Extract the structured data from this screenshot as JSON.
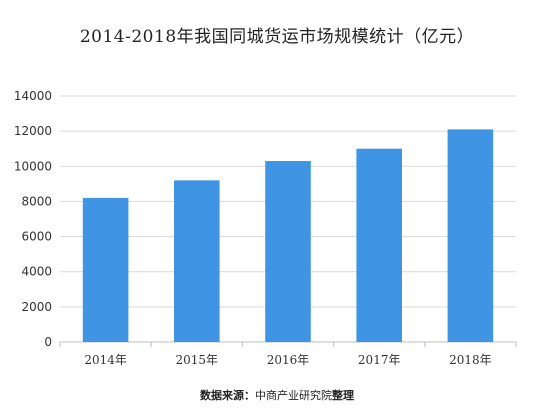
{
  "chart_data": {
    "type": "bar",
    "title": "2014-2018年我国同城货运市场规模统计（亿元）",
    "categories": [
      "2014年",
      "2015年",
      "2016年",
      "2017年",
      "2018年"
    ],
    "values": [
      8200,
      9200,
      10300,
      11000,
      12100
    ],
    "ylim": [
      0,
      14000
    ],
    "yticks": [
      0,
      2000,
      4000,
      6000,
      8000,
      10000,
      12000,
      14000
    ],
    "xlabel": "",
    "ylabel": "",
    "grid": true,
    "legend": "none",
    "bar_color": "#3f95e4",
    "grid_color": "#d9d9d9"
  },
  "source": {
    "label": "数据来源：",
    "org": "中商产业研究院",
    "tail": "整理"
  }
}
